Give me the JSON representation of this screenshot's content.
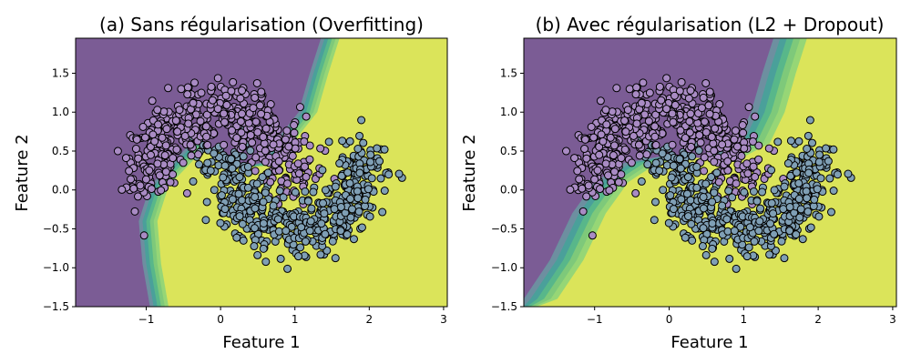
{
  "colors": {
    "region_class_0": "#7b5c95",
    "region_class_1": "#dbe45a",
    "transition": [
      "#6d8fa0",
      "#4aa09a",
      "#58b78a",
      "#7ec97a",
      "#96d676"
    ],
    "point_class_0": "#a98bc4",
    "point_class_1": "#7f9fb5",
    "point_edge": "#000000"
  },
  "chart_data": [
    {
      "type": "scatter",
      "title": "(a) Sans régularisation (Overfitting)",
      "xlabel": "Feature 1",
      "ylabel": "Feature 2",
      "xlim": [
        -1.95,
        3.05
      ],
      "ylim": [
        -1.5,
        1.95
      ],
      "xticks": [
        -1,
        0,
        1,
        2,
        3
      ],
      "yticks": [
        -1.5,
        -1.0,
        -0.5,
        0.0,
        0.5,
        1.0,
        1.5
      ],
      "ytick_labels": [
        "−1.5",
        "−1.0",
        "−0.5",
        "0.0",
        "0.5",
        "1.0",
        "1.5"
      ],
      "xtick_labels": [
        "−1",
        "0",
        "1",
        "2",
        "3"
      ],
      "background": "filled decision-boundary contours (purple = class 0, yellow = class 1)",
      "decision_boundary": [
        [
          -0.95,
          -1.5
        ],
        [
          -1.05,
          -0.95
        ],
        [
          -1.1,
          -0.4
        ],
        [
          -0.95,
          0.05
        ],
        [
          -0.7,
          0.3
        ],
        [
          -0.4,
          0.6
        ],
        [
          0.0,
          0.5
        ],
        [
          0.3,
          0.3
        ],
        [
          0.55,
          0.35
        ],
        [
          0.8,
          0.7
        ],
        [
          1.05,
          1.0
        ],
        [
          1.2,
          1.5
        ],
        [
          1.35,
          1.95
        ]
      ],
      "series": [
        {
          "name": "class 0",
          "description": "upper moon",
          "center_path": [
            [
              -1.0,
              0.0
            ],
            [
              -0.5,
              0.87
            ],
            [
              0.0,
              1.0
            ],
            [
              0.5,
              0.87
            ],
            [
              1.0,
              0.0
            ]
          ]
        },
        {
          "name": "class 1",
          "description": "lower moon",
          "center_path": [
            [
              0.0,
              0.5
            ],
            [
              0.5,
              -0.37
            ],
            [
              1.0,
              -0.5
            ],
            [
              1.5,
              -0.37
            ],
            [
              2.0,
              0.5
            ]
          ]
        }
      ],
      "n_points_per_class": 500,
      "noise_sd": 0.2
    },
    {
      "type": "scatter",
      "title": "(b) Avec régularisation (L2 + Dropout)",
      "xlabel": "Feature 1",
      "ylabel": "Feature 2",
      "xlim": [
        -1.95,
        3.05
      ],
      "ylim": [
        -1.5,
        1.95
      ],
      "xticks": [
        -1,
        0,
        1,
        2,
        3
      ],
      "yticks": [
        -1.5,
        -1.0,
        -0.5,
        0.0,
        0.5,
        1.0,
        1.5
      ],
      "ytick_labels": [
        "−1.5",
        "−1.0",
        "−0.5",
        "0.0",
        "0.5",
        "1.0",
        "1.5"
      ],
      "xtick_labels": [
        "−1",
        "0",
        "1",
        "2",
        "3"
      ],
      "background": "filled decision-boundary contours (purple = class 0, yellow = class 1)",
      "decision_boundary": [
        [
          -1.95,
          -1.4
        ],
        [
          -1.6,
          -0.9
        ],
        [
          -1.3,
          -0.3
        ],
        [
          -1.0,
          0.1
        ],
        [
          -0.6,
          0.35
        ],
        [
          0.0,
          0.45
        ],
        [
          0.5,
          0.4
        ],
        [
          0.9,
          0.6
        ],
        [
          1.1,
          1.0
        ],
        [
          1.25,
          1.5
        ],
        [
          1.4,
          1.95
        ]
      ],
      "series": [
        {
          "name": "class 0",
          "description": "upper moon",
          "center_path": [
            [
              -1.0,
              0.0
            ],
            [
              -0.5,
              0.87
            ],
            [
              0.0,
              1.0
            ],
            [
              0.5,
              0.87
            ],
            [
              1.0,
              0.0
            ]
          ]
        },
        {
          "name": "class 1",
          "description": "lower moon",
          "center_path": [
            [
              0.0,
              0.5
            ],
            [
              0.5,
              -0.37
            ],
            [
              1.0,
              -0.5
            ],
            [
              1.5,
              -0.37
            ],
            [
              2.0,
              0.5
            ]
          ]
        }
      ],
      "n_points_per_class": 500,
      "noise_sd": 0.2
    }
  ]
}
